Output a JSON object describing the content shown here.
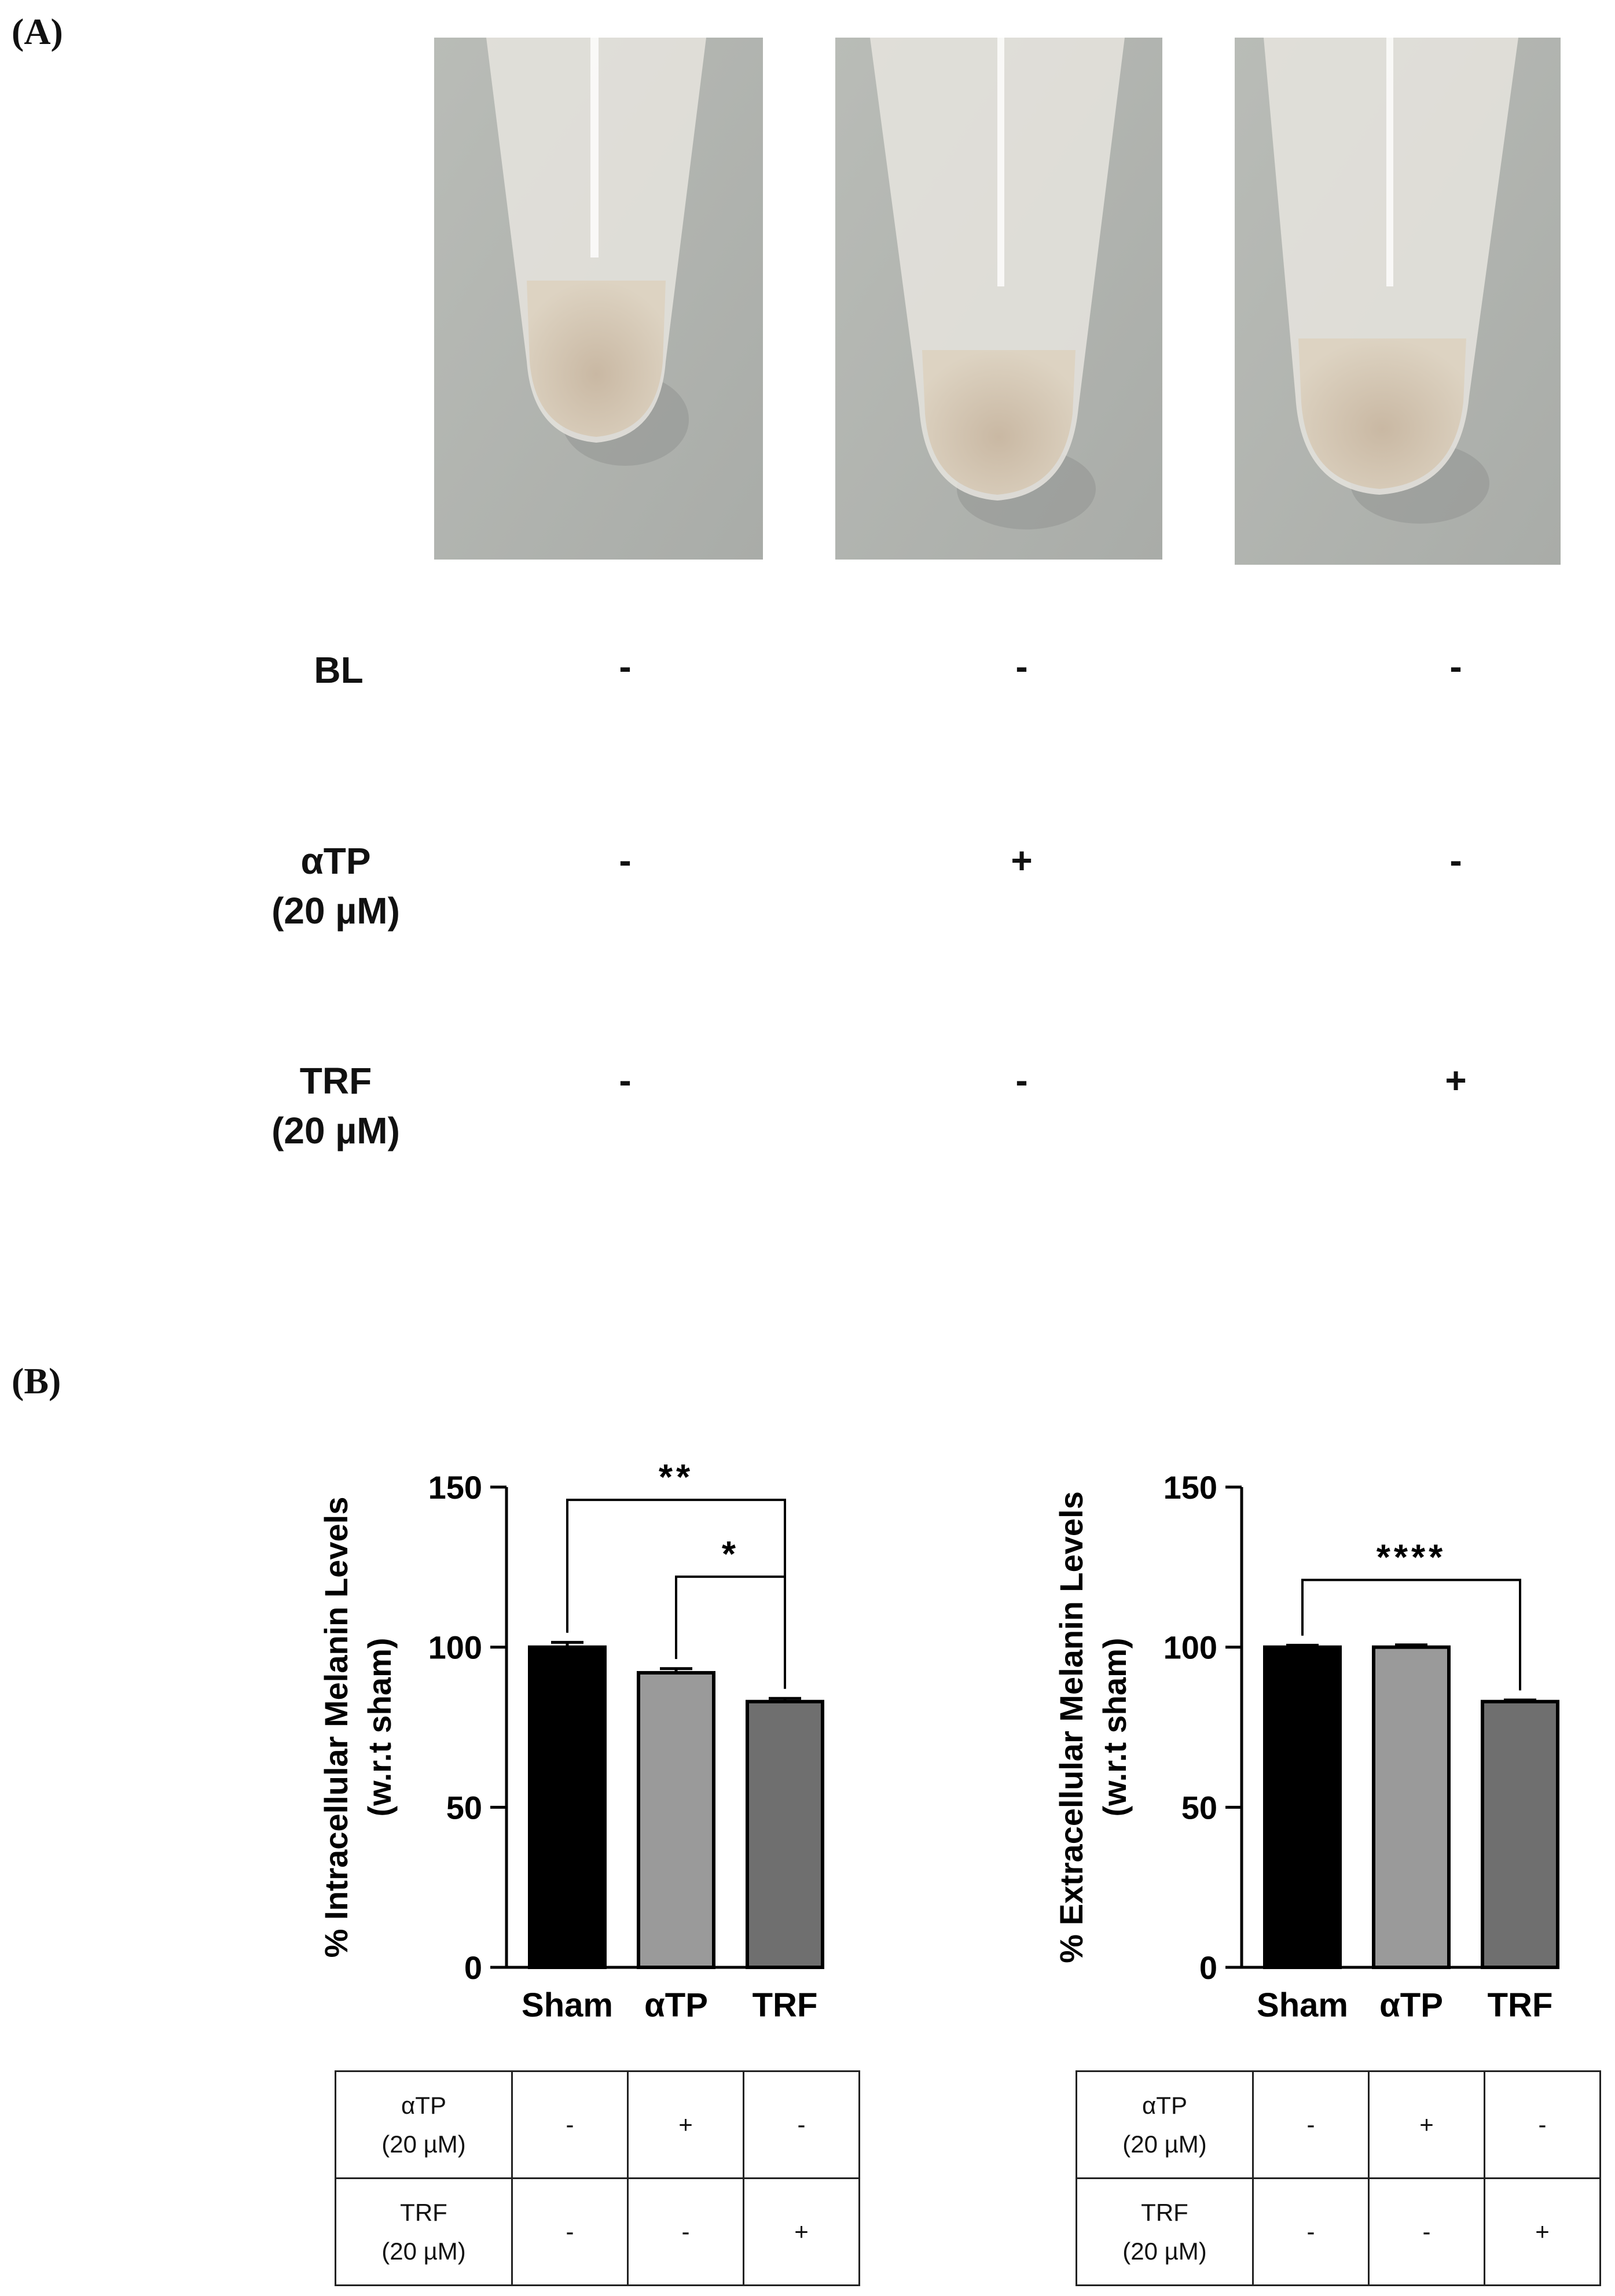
{
  "panels": {
    "a": "(A)",
    "b": "(B)"
  },
  "tube_photos": [
    {
      "name": "tube-photo-1"
    },
    {
      "name": "tube-photo-2"
    },
    {
      "name": "tube-photo-3"
    }
  ],
  "conditions_a": {
    "rows": [
      {
        "label_line1": "BL",
        "label_line2": "",
        "signs": [
          "-",
          "-",
          "-"
        ]
      },
      {
        "label_line1": "αTP",
        "label_line2": "(20 µM)",
        "signs": [
          "-",
          "+",
          "-"
        ]
      },
      {
        "label_line1": "TRF",
        "label_line2": "(20 µM)",
        "signs": [
          "-",
          "-",
          "+"
        ]
      }
    ]
  },
  "chart_data": [
    {
      "type": "bar",
      "categories": [
        "Sham",
        "αTP",
        "TRF"
      ],
      "values": [
        100,
        92,
        83
      ],
      "errors": [
        1.5,
        1.3,
        1.0
      ],
      "bar_colors": [
        "#000000",
        "#9a9a9a",
        "#6f6f6f"
      ],
      "ylabel_line1": "% Intracellular Melanin Levels",
      "ylabel_line2": "(w.r.t sham)",
      "ylim": [
        0,
        150
      ],
      "yticks": [
        "0",
        "50",
        "100",
        "150"
      ],
      "ytick_values": [
        0,
        50,
        100,
        150
      ],
      "significance": [
        {
          "from": 0,
          "to": 2,
          "label": "**"
        },
        {
          "from": 1,
          "to": 2,
          "label": "*"
        }
      ]
    },
    {
      "type": "bar",
      "categories": [
        "Sham",
        "αTP",
        "TRF"
      ],
      "values": [
        100,
        100,
        83
      ],
      "errors": [
        0.6,
        0.7,
        0.5
      ],
      "bar_colors": [
        "#000000",
        "#9a9a9a",
        "#6f6f6f"
      ],
      "ylabel_line1": "% Extracellular Melanin Levels",
      "ylabel_line2": "(w.r.t sham)",
      "ylim": [
        0,
        150
      ],
      "yticks": [
        "0",
        "50",
        "100",
        "150"
      ],
      "ytick_values": [
        0,
        50,
        100,
        150
      ],
      "significance": [
        {
          "from": 0,
          "to": 2,
          "label": "****"
        }
      ]
    }
  ],
  "tables_b": [
    {
      "rows": [
        {
          "line1": "αTP",
          "line2": "(20 µM)",
          "cells": [
            "-",
            "+",
            "-"
          ]
        },
        {
          "line1": "TRF",
          "line2": "(20 µM)",
          "cells": [
            "-",
            "-",
            "+"
          ]
        }
      ]
    },
    {
      "rows": [
        {
          "line1": "αTP",
          "line2": "(20 µM)",
          "cells": [
            "-",
            "+",
            "-"
          ]
        },
        {
          "line1": "TRF",
          "line2": "(20 µM)",
          "cells": [
            "-",
            "-",
            "+"
          ]
        }
      ]
    }
  ]
}
